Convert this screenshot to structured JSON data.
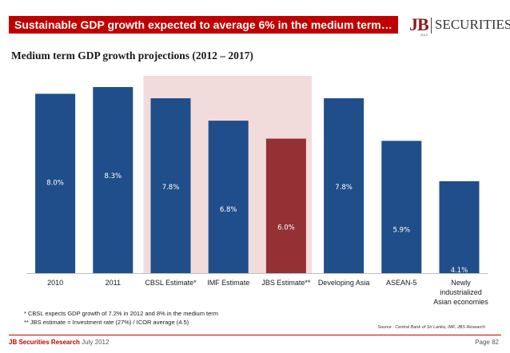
{
  "header": {
    "title": "Sustainable GDP growth expected to average 6% in the medium term…",
    "logo_jb": "JB",
    "logo_securities": "SECURITIES",
    "logo_year": "2012"
  },
  "subtitle": "Medium term GDP growth projections (2012 – 2017)",
  "colors": {
    "title_bar": "#c00000",
    "bar_default": "#1f4e8a",
    "bar_highlight": "#933134",
    "highlight_band": "#f2dcdb"
  },
  "chart_data": {
    "type": "bar",
    "title": "Medium term GDP growth projections (2012 – 2017)",
    "categories": [
      "2010",
      "2011",
      "CBSL Estimate*",
      "IMF Estimate",
      "JBS Estimate**",
      "Developing Asia",
      "ASEAN-5",
      "Newly industrialized Asian economies"
    ],
    "category_lines": [
      [
        "2010"
      ],
      [
        "2011"
      ],
      [
        "CBSL Estimate*"
      ],
      [
        "IMF Estimate"
      ],
      [
        "JBS Estimate**"
      ],
      [
        "Developing Asia"
      ],
      [
        "ASEAN-5"
      ],
      [
        "Newly",
        "industrialized",
        "Asian economies"
      ]
    ],
    "values": [
      8.0,
      8.3,
      7.8,
      6.8,
      6.0,
      7.8,
      5.9,
      4.1
    ],
    "labels": [
      "8.0%",
      "8.3%",
      "7.8%",
      "6.8%",
      "6.0%",
      "7.8%",
      "5.9%",
      "4.1%"
    ],
    "highlight_index": 4,
    "highlight_band": [
      2,
      4
    ],
    "ylim": [
      0,
      8.3
    ],
    "xlabel": "",
    "ylabel": "",
    "grid": false
  },
  "footnotes": [
    "* CBSL expects GDP growth of 7.2% in 2012 and 8% in the medium term",
    "** JBS estimate = Investment rate (27%) / ICOR average (4.5)"
  ],
  "source": "Source : Central Bank of Sri Lanka, IMF, JBS Research",
  "footer": {
    "brand": "JB Securities Research",
    "date": "July 2012",
    "page": "Page  82"
  }
}
